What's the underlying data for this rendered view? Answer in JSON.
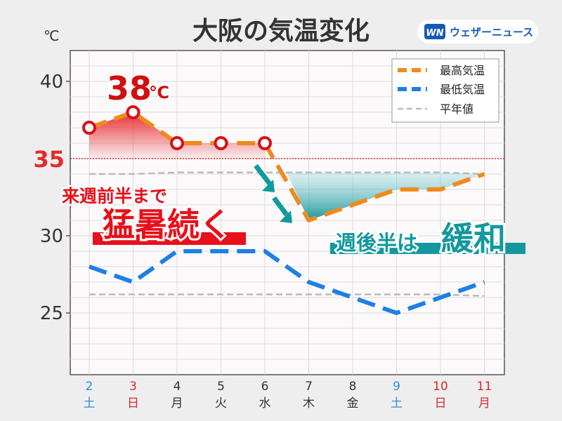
{
  "chart_data": {
    "type": "line",
    "title": "大阪の気温変化",
    "unit": "℃",
    "ylim": [
      21,
      42
    ],
    "yticks": [
      25,
      30,
      35,
      40
    ],
    "x": [
      "2",
      "3",
      "4",
      "5",
      "6",
      "7",
      "8",
      "9",
      "10",
      "11"
    ],
    "weekdays": [
      "土",
      "日",
      "月",
      "火",
      "水",
      "木",
      "金",
      "土",
      "日",
      "月"
    ],
    "day_colors": [
      "#2c8fd6",
      "#d62a2a",
      "#333333",
      "#333333",
      "#333333",
      "#333333",
      "#333333",
      "#2c8fd6",
      "#d62a2a",
      "#d62a2a"
    ],
    "series": [
      {
        "name": "最高気温",
        "color": "#f08a1e",
        "values": [
          37,
          38,
          36,
          36,
          36,
          31,
          32,
          33,
          33,
          34
        ]
      },
      {
        "name": "最低気温",
        "color": "#1e7fe6",
        "values": [
          28,
          27,
          29,
          29,
          29,
          27,
          26,
          25,
          26,
          27
        ]
      },
      {
        "name": "平年値",
        "color": "#bbbbbb",
        "values_high": [
          34,
          34,
          34.1,
          34.1,
          34.1,
          34.1,
          34.1,
          34.1,
          34.1,
          34
        ],
        "values_low": [
          26.2,
          26.2,
          26.2,
          26.2,
          26.2,
          26.2,
          26.2,
          26.2,
          26.2,
          26.1
        ]
      }
    ],
    "threshold": {
      "value": 35,
      "label": "35",
      "color": "#e52a2a"
    },
    "peak_label": {
      "value": "38",
      "unit": "℃"
    },
    "annotations": {
      "hot_line1": "来週前半まで",
      "hot_line2": "猛暑続く",
      "cool_line1": "週後半は",
      "cool_line2": "緩和"
    },
    "grid": true,
    "legend": "top-right"
  },
  "brand": {
    "logo": "WN",
    "name": "ウェザーニュース"
  }
}
